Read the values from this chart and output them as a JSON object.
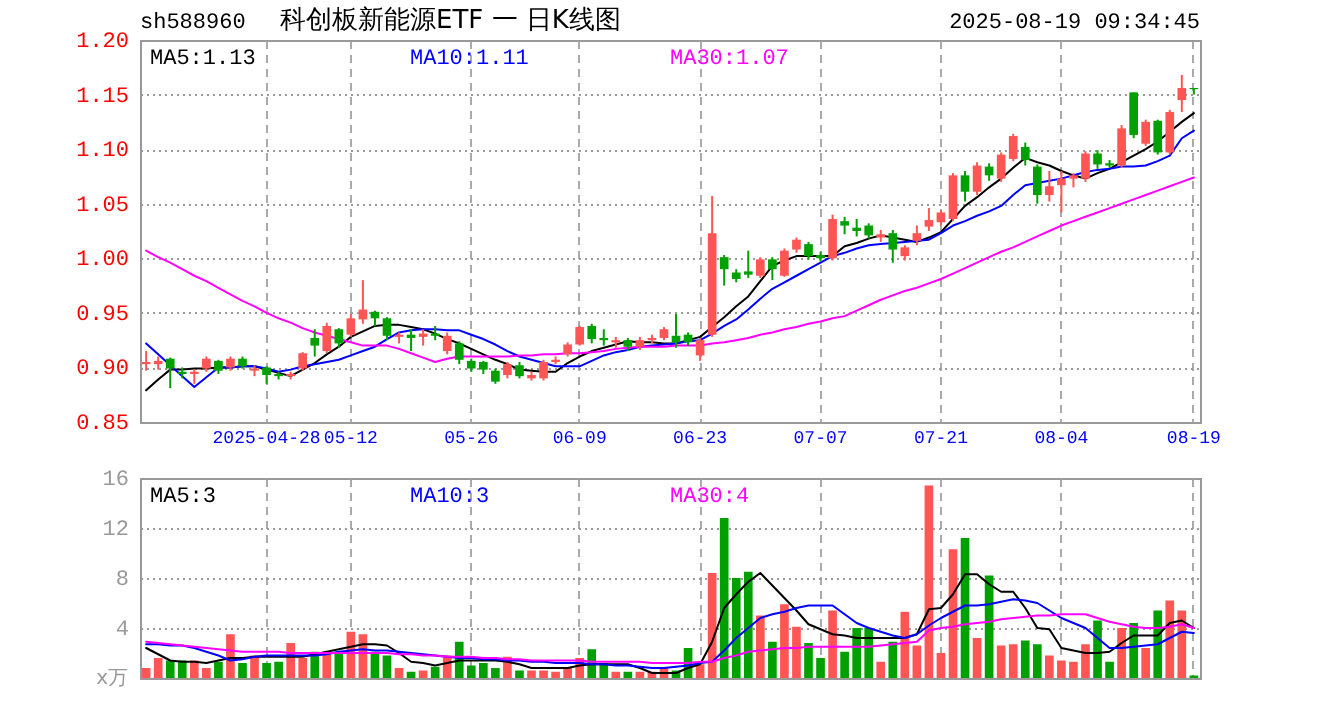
{
  "chart_data": [
    {
      "type": "candlestick",
      "title": "科创板新能源ETF 一 日K线图",
      "subtitle": "sh588960",
      "annotations": [
        "2025-08-19 09:34:45"
      ],
      "categories": [
        null,
        null,
        null,
        null,
        null,
        null,
        null,
        null,
        null,
        null,
        "2025-04-28",
        null,
        null,
        null,
        null,
        null,
        null,
        "05-12",
        null,
        null,
        null,
        null,
        null,
        null,
        null,
        null,
        null,
        "05-26",
        null,
        null,
        null,
        null,
        null,
        null,
        null,
        null,
        "06-09",
        null,
        null,
        null,
        null,
        null,
        null,
        null,
        null,
        null,
        "06-23",
        null,
        null,
        null,
        null,
        null,
        null,
        null,
        null,
        null,
        "07-07",
        null,
        null,
        null,
        null,
        null,
        null,
        null,
        null,
        null,
        "07-21",
        null,
        null,
        null,
        null,
        null,
        null,
        null,
        null,
        null,
        "08-04",
        null,
        null,
        null,
        null,
        null,
        null,
        null,
        null,
        null,
        null,
        "08-19"
      ],
      "ohlc": [
        [
          0.903,
          0.915,
          0.897,
          0.905
        ],
        [
          0.903,
          0.91,
          0.898,
          0.906
        ],
        [
          0.908,
          0.909,
          0.881,
          0.899
        ],
        [
          0.896,
          0.9,
          0.89,
          0.894
        ],
        [
          0.894,
          0.898,
          0.885,
          0.896
        ],
        [
          0.899,
          0.91,
          0.896,
          0.908
        ],
        [
          0.906,
          0.907,
          0.894,
          0.897
        ],
        [
          0.9,
          0.91,
          0.897,
          0.908
        ],
        [
          0.908,
          0.91,
          0.899,
          0.901
        ],
        [
          0.897,
          0.902,
          0.892,
          0.899
        ],
        [
          0.9,
          0.901,
          0.885,
          0.893
        ],
        [
          0.894,
          0.896,
          0.889,
          0.892
        ],
        [
          0.892,
          0.896,
          0.889,
          0.894
        ],
        [
          0.899,
          0.914,
          0.897,
          0.913
        ],
        [
          0.927,
          0.935,
          0.91,
          0.92
        ],
        [
          0.915,
          0.941,
          0.913,
          0.938
        ],
        [
          0.935,
          0.936,
          0.918,
          0.922
        ],
        [
          0.93,
          0.949,
          0.928,
          0.945
        ],
        [
          0.944,
          0.98,
          0.94,
          0.953
        ],
        [
          0.951,
          0.952,
          0.938,
          0.945
        ],
        [
          0.945,
          0.946,
          0.925,
          0.929
        ],
        [
          0.928,
          0.932,
          0.922,
          0.93
        ],
        [
          0.93,
          0.935,
          0.915,
          0.927
        ],
        [
          0.928,
          0.935,
          0.92,
          0.931
        ],
        [
          0.931,
          0.938,
          0.925,
          0.929
        ],
        [
          0.915,
          0.932,
          0.912,
          0.929
        ],
        [
          0.922,
          0.924,
          0.903,
          0.907
        ],
        [
          0.906,
          0.908,
          0.896,
          0.899
        ],
        [
          0.905,
          0.906,
          0.894,
          0.898
        ],
        [
          0.897,
          0.899,
          0.885,
          0.887
        ],
        [
          0.893,
          0.905,
          0.89,
          0.903
        ],
        [
          0.902,
          0.905,
          0.89,
          0.892
        ],
        [
          0.89,
          0.896,
          0.888,
          0.893
        ],
        [
          0.89,
          0.907,
          0.888,
          0.905
        ],
        [
          0.905,
          0.91,
          0.903,
          0.907
        ],
        [
          0.912,
          0.923,
          0.91,
          0.921
        ],
        [
          0.921,
          0.938,
          0.92,
          0.937
        ],
        [
          0.938,
          0.94,
          0.922,
          0.926
        ],
        [
          0.927,
          0.935,
          0.92,
          0.925
        ],
        [
          0.923,
          0.928,
          0.918,
          0.925
        ],
        [
          0.925,
          0.927,
          0.915,
          0.919
        ],
        [
          0.919,
          0.928,
          0.916,
          0.925
        ],
        [
          0.925,
          0.93,
          0.922,
          0.927
        ],
        [
          0.927,
          0.937,
          0.925,
          0.935
        ],
        [
          0.929,
          0.949,
          0.918,
          0.923
        ],
        [
          0.93,
          0.932,
          0.92,
          0.923
        ],
        [
          0.911,
          0.927,
          0.906,
          0.925
        ],
        [
          0.93,
          1.057,
          0.928,
          1.023
        ],
        [
          1.001,
          1.003,
          0.975,
          0.99
        ],
        [
          0.987,
          0.99,
          0.978,
          0.981
        ],
        [
          0.988,
          1.007,
          0.982,
          0.985
        ],
        [
          0.984,
          1.001,
          0.982,
          0.999
        ],
        [
          0.999,
          1.001,
          0.98,
          0.99
        ],
        [
          0.984,
          1.009,
          0.983,
          1.007
        ],
        [
          1.008,
          1.019,
          1.005,
          1.017
        ],
        [
          1.013,
          1.015,
          0.999,
          1.002
        ],
        [
          1.003,
          1.006,
          0.997,
          1.0
        ],
        [
          1.0,
          1.04,
          0.998,
          1.036
        ],
        [
          1.034,
          1.038,
          1.022,
          1.03
        ],
        [
          1.028,
          1.036,
          1.02,
          1.025
        ],
        [
          1.03,
          1.032,
          1.018,
          1.021
        ],
        [
          1.019,
          1.026,
          1.015,
          1.022
        ],
        [
          1.023,
          1.026,
          0.996,
          1.008
        ],
        [
          1.002,
          1.012,
          0.998,
          1.01
        ],
        [
          1.016,
          1.03,
          1.012,
          1.023
        ],
        [
          1.029,
          1.046,
          1.025,
          1.035
        ],
        [
          1.033,
          1.044,
          1.03,
          1.042
        ],
        [
          1.036,
          1.078,
          1.034,
          1.076
        ],
        [
          1.076,
          1.08,
          1.052,
          1.061
        ],
        [
          1.061,
          1.088,
          1.058,
          1.085
        ],
        [
          1.084,
          1.087,
          1.071,
          1.076
        ],
        [
          1.073,
          1.097,
          1.07,
          1.095
        ],
        [
          1.091,
          1.114,
          1.089,
          1.112
        ],
        [
          1.102,
          1.106,
          1.085,
          1.09
        ],
        [
          1.084,
          1.086,
          1.05,
          1.058
        ],
        [
          1.058,
          1.08,
          1.052,
          1.066
        ],
        [
          1.067,
          1.08,
          1.042,
          1.073
        ],
        [
          1.073,
          1.078,
          1.065,
          1.076
        ],
        [
          1.073,
          1.098,
          1.07,
          1.096
        ],
        [
          1.096,
          1.099,
          1.082,
          1.086
        ],
        [
          1.087,
          1.09,
          1.083,
          1.085
        ],
        [
          1.085,
          1.122,
          1.083,
          1.119
        ],
        [
          1.152,
          1.152,
          1.11,
          1.113
        ],
        [
          1.105,
          1.127,
          1.103,
          1.125
        ],
        [
          1.126,
          1.127,
          1.095,
          1.097
        ],
        [
          1.097,
          1.136,
          1.095,
          1.134
        ],
        [
          1.145,
          1.168,
          1.134,
          1.156
        ],
        [
          1.156,
          1.156,
          1.15,
          1.155
        ]
      ],
      "colors": [
        "#ff5555",
        "#ff5555",
        "#00a000",
        "#00a000",
        "#ff5555",
        "#ff5555",
        "#00a000",
        "#ff5555",
        "#00a000",
        "#ff5555",
        "#00a000",
        "#00a000",
        "#ff5555",
        "#ff5555",
        "#00a000",
        "#ff5555",
        "#00a000",
        "#ff5555",
        "#ff5555",
        "#00a000",
        "#00a000",
        "#ff5555",
        "#00a000",
        "#ff5555",
        "#00a000",
        "#ff5555",
        "#00a000",
        "#00a000",
        "#00a000",
        "#00a000",
        "#ff5555",
        "#00a000",
        "#ff5555",
        "#ff5555",
        "#ff5555",
        "#ff5555",
        "#ff5555",
        "#00a000",
        "#00a000",
        "#ff5555",
        "#00a000",
        "#ff5555",
        "#ff5555",
        "#ff5555",
        "#00a000",
        "#00a000",
        "#ff5555",
        "#ff5555",
        "#00a000",
        "#00a000",
        "#00a000",
        "#ff5555",
        "#00a000",
        "#ff5555",
        "#ff5555",
        "#00a000",
        "#00a000",
        "#ff5555",
        "#00a000",
        "#00a000",
        "#00a000",
        "#ff5555",
        "#00a000",
        "#ff5555",
        "#ff5555",
        "#ff5555",
        "#ff5555",
        "#ff5555",
        "#00a000",
        "#ff5555",
        "#00a000",
        "#ff5555",
        "#ff5555",
        "#00a000",
        "#00a000",
        "#ff5555",
        "#ff5555",
        "#ff5555",
        "#ff5555",
        "#00a000",
        "#00a000",
        "#ff5555",
        "#00a000",
        "#ff5555",
        "#00a000",
        "#ff5555",
        "#ff5555",
        "#00a000"
      ],
      "series": [
        {
          "name": "MA5:1.13",
          "type": "line",
          "color": "#000000",
          "values": [
            0.879,
            0.889,
            0.898,
            0.898,
            0.899,
            0.899,
            0.9,
            0.9,
            0.901,
            0.901,
            0.898,
            0.895,
            0.892,
            0.898,
            0.904,
            0.912,
            0.919,
            0.928,
            0.933,
            0.938,
            0.939,
            0.939,
            0.937,
            0.935,
            0.931,
            0.926,
            0.922,
            0.917,
            0.912,
            0.907,
            0.903,
            0.898,
            0.897,
            0.896,
            0.896,
            0.904,
            0.91,
            0.915,
            0.918,
            0.921,
            0.924,
            0.923,
            0.923,
            0.922,
            0.922,
            0.925,
            0.928,
            0.937,
            0.946,
            0.956,
            0.965,
            0.979,
            0.993,
            0.998,
            1.002,
            1.002,
            1.002,
            1.002,
            1.011,
            1.014,
            1.018,
            1.021,
            1.019,
            1.017,
            1.015,
            1.019,
            1.024,
            1.036,
            1.048,
            1.056,
            1.065,
            1.073,
            1.083,
            1.092,
            1.088,
            1.085,
            1.08,
            1.076,
            1.073,
            1.078,
            1.082,
            1.088,
            1.094,
            1.1,
            1.107,
            1.116,
            1.125,
            1.133
          ]
        },
        {
          "name": "MA10:1.11",
          "type": "line",
          "color": "#0000ff",
          "values": [
            0.922,
            0.912,
            0.902,
            0.892,
            0.882,
            0.891,
            0.9,
            0.9,
            0.901,
            0.901,
            0.899,
            0.896,
            0.898,
            0.901,
            0.903,
            0.905,
            0.907,
            0.911,
            0.915,
            0.919,
            0.926,
            0.932,
            0.934,
            0.935,
            0.935,
            0.934,
            0.934,
            0.93,
            0.926,
            0.921,
            0.915,
            0.91,
            0.907,
            0.904,
            0.901,
            0.901,
            0.901,
            0.906,
            0.911,
            0.914,
            0.916,
            0.919,
            0.92,
            0.921,
            0.922,
            0.924,
            0.925,
            0.931,
            0.938,
            0.944,
            0.953,
            0.963,
            0.972,
            0.978,
            0.984,
            0.99,
            0.996,
            1.002,
            1.005,
            1.009,
            1.012,
            1.013,
            1.014,
            1.015,
            1.016,
            1.017,
            1.023,
            1.03,
            1.034,
            1.039,
            1.043,
            1.048,
            1.058,
            1.067,
            1.069,
            1.071,
            1.073,
            1.076,
            1.079,
            1.081,
            1.082,
            1.084,
            1.084,
            1.085,
            1.089,
            1.094,
            1.11,
            1.117
          ]
        },
        {
          "name": "MA30:1.07",
          "type": "line",
          "color": "#ff00ff",
          "values": [
            1.007,
            1.001,
            0.996,
            0.99,
            0.984,
            0.979,
            0.973,
            0.967,
            0.961,
            0.956,
            0.95,
            0.945,
            0.941,
            0.936,
            0.932,
            0.929,
            0.926,
            0.923,
            0.92,
            0.92,
            0.92,
            0.917,
            0.913,
            0.909,
            0.905,
            0.908,
            0.91,
            0.91,
            0.91,
            0.91,
            0.91,
            0.911,
            0.911,
            0.912,
            0.912,
            0.913,
            0.913,
            0.914,
            0.915,
            0.917,
            0.918,
            0.919,
            0.919,
            0.919,
            0.92,
            0.92,
            0.92,
            0.922,
            0.923,
            0.925,
            0.927,
            0.93,
            0.932,
            0.935,
            0.937,
            0.94,
            0.942,
            0.945,
            0.947,
            0.952,
            0.957,
            0.962,
            0.966,
            0.97,
            0.973,
            0.977,
            0.981,
            0.986,
            0.991,
            0.996,
            1.001,
            1.006,
            1.01,
            1.015,
            1.02,
            1.025,
            1.03,
            1.034,
            1.038,
            1.042,
            1.046,
            1.05,
            1.054,
            1.058,
            1.062,
            1.066,
            1.07,
            1.074
          ]
        }
      ],
      "ylim": [
        0.85,
        1.2
      ],
      "yticks": [
        0.85,
        {
          "value": 0.9,
          "label": "0.90"
        },
        0.95,
        {
          "value": 1.0,
          "label": "1.00"
        },
        1.05,
        {
          "value": 1.1,
          "label": "1.10"
        },
        1.15,
        {
          "value": 1.2,
          "label": "1.20"
        }
      ],
      "grid": true
    },
    {
      "type": "bar",
      "ylabel": "x万",
      "tick_labels": "y",
      "categories": [
        null,
        null,
        null,
        null,
        null,
        null,
        null,
        null,
        null,
        null,
        null,
        null,
        null,
        null,
        null,
        null,
        null,
        null,
        null,
        null,
        null,
        null,
        null,
        null,
        null,
        null,
        null,
        null,
        null,
        null,
        null,
        null,
        null,
        null,
        null,
        null,
        null,
        null,
        null,
        null,
        null,
        null,
        null,
        null,
        null,
        null,
        null,
        null,
        null,
        null,
        null,
        null,
        null,
        null,
        null,
        null,
        null,
        null,
        null,
        null,
        null,
        null,
        null,
        null,
        null,
        null,
        null,
        null,
        null,
        null,
        null,
        null,
        null,
        null,
        null,
        null,
        null,
        null,
        null,
        null,
        null,
        null,
        null,
        null,
        null,
        null,
        null,
        null
      ],
      "series": [
        {
          "type": "bar",
          "values": [
            0.8,
            1.6,
            1.4,
            1.4,
            1.4,
            0.8,
            1.3,
            3.5,
            1.2,
            1.8,
            1.2,
            1.3,
            2.8,
            1.6,
            2.1,
            2.1,
            2.1,
            3.7,
            3.5,
            2.1,
            1.8,
            0.8,
            0.5,
            0.6,
            0.9,
            1.8,
            2.9,
            1.0,
            1.2,
            0.8,
            1.7,
            0.6,
            0.6,
            0.6,
            0.5,
            0.8,
            1.6,
            2.3,
            1.2,
            0.5,
            0.5,
            0.5,
            0.5,
            0.8,
            0.6,
            2.4,
            1.1,
            8.4,
            12.8,
            8.0,
            8.5,
            5.0,
            2.9,
            5.9,
            4.1,
            2.8,
            1.6,
            5.4,
            2.1,
            4.0,
            4.0,
            1.3,
            2.9,
            5.3,
            2.6,
            15.4,
            2.0,
            10.3,
            11.2,
            3.2,
            8.2,
            2.6,
            2.7,
            3.0,
            2.7,
            1.8,
            1.4,
            1.3,
            2.7,
            4.6,
            1.3,
            4.0,
            4.4,
            2.4,
            5.4,
            6.2,
            5.4,
            0.2
          ],
          "colors": [
            "#ff5555",
            "#ff5555",
            "#00a000",
            "#00a000",
            "#ff5555",
            "#ff5555",
            "#00a000",
            "#ff5555",
            "#00a000",
            "#ff5555",
            "#00a000",
            "#00a000",
            "#ff5555",
            "#ff5555",
            "#00a000",
            "#ff5555",
            "#00a000",
            "#ff5555",
            "#ff5555",
            "#00a000",
            "#00a000",
            "#ff5555",
            "#00a000",
            "#ff5555",
            "#00a000",
            "#ff5555",
            "#00a000",
            "#00a000",
            "#00a000",
            "#00a000",
            "#ff5555",
            "#00a000",
            "#ff5555",
            "#ff5555",
            "#ff5555",
            "#ff5555",
            "#ff5555",
            "#00a000",
            "#00a000",
            "#ff5555",
            "#00a000",
            "#ff5555",
            "#ff5555",
            "#ff5555",
            "#00a000",
            "#00a000",
            "#ff5555",
            "#ff5555",
            "#00a000",
            "#00a000",
            "#00a000",
            "#ff5555",
            "#00a000",
            "#ff5555",
            "#ff5555",
            "#00a000",
            "#00a000",
            "#ff5555",
            "#00a000",
            "#00a000",
            "#00a000",
            "#ff5555",
            "#00a000",
            "#ff5555",
            "#ff5555",
            "#ff5555",
            "#ff5555",
            "#ff5555",
            "#00a000",
            "#ff5555",
            "#00a000",
            "#ff5555",
            "#ff5555",
            "#00a000",
            "#00a000",
            "#ff5555",
            "#ff5555",
            "#ff5555",
            "#ff5555",
            "#00a000",
            "#00a000",
            "#ff5555",
            "#00a000",
            "#ff5555",
            "#00a000",
            "#ff5555",
            "#ff5555",
            "#00a000"
          ]
        },
        {
          "name": "MA5:3",
          "type": "line",
          "color": "#000000",
          "values": [
            2.4,
            1.9,
            1.4,
            1.3,
            1.3,
            1.2,
            1.4,
            1.6,
            1.6,
            1.7,
            1.7,
            1.7,
            1.7,
            1.7,
            1.9,
            2.1,
            2.3,
            2.5,
            2.7,
            2.7,
            2.6,
            2.0,
            1.3,
            1.2,
            1.0,
            1.2,
            1.4,
            1.4,
            1.4,
            1.4,
            1.3,
            1.1,
            0.8,
            0.8,
            0.8,
            0.8,
            1.0,
            1.1,
            1.1,
            1.1,
            1.1,
            0.8,
            0.4,
            0.4,
            0.4,
            0.8,
            1.1,
            2.9,
            5.6,
            6.7,
            7.7,
            8.4,
            7.4,
            6.4,
            5.4,
            4.3,
            3.9,
            3.5,
            3.4,
            3.2,
            3.2,
            3.2,
            3.2,
            3.2,
            3.5,
            5.5,
            5.6,
            6.7,
            8.3,
            8.3,
            7.5,
            6.9,
            6.9,
            5.6,
            4.0,
            3.9,
            2.4,
            2.2,
            2.0,
            2.0,
            2.1,
            2.8,
            3.4,
            3.4,
            3.4,
            4.4,
            4.6,
            4.0
          ]
        },
        {
          "name": "MA10:3",
          "type": "line",
          "color": "#0000ff",
          "values": [
            2.7,
            2.7,
            2.6,
            2.6,
            2.4,
            2.1,
            1.8,
            1.4,
            1.5,
            1.7,
            1.8,
            1.8,
            1.8,
            1.8,
            1.8,
            1.9,
            2.1,
            2.2,
            2.3,
            2.2,
            2.2,
            2.1,
            2.0,
            1.9,
            1.8,
            1.7,
            1.6,
            1.6,
            1.5,
            1.5,
            1.4,
            1.4,
            1.3,
            1.3,
            1.2,
            1.2,
            1.2,
            1.1,
            1.1,
            1.0,
            1.0,
            0.9,
            0.8,
            0.8,
            0.9,
            1.0,
            1.2,
            1.3,
            2.2,
            3.2,
            4.0,
            4.8,
            5.1,
            5.3,
            5.6,
            5.8,
            5.8,
            5.8,
            5.1,
            4.4,
            4.0,
            3.7,
            3.4,
            3.2,
            3.5,
            4.2,
            4.8,
            5.3,
            5.8,
            5.8,
            5.9,
            6.1,
            6.3,
            6.2,
            6.0,
            5.4,
            4.8,
            4.4,
            4.0,
            3.2,
            2.4,
            2.4,
            2.5,
            2.6,
            2.7,
            3.2,
            3.7,
            3.6
          ]
        },
        {
          "name": "MA30:4",
          "type": "line",
          "color": "#ff00ff",
          "values": [
            2.9,
            2.8,
            2.7,
            2.6,
            2.5,
            2.4,
            2.3,
            2.2,
            2.1,
            2.1,
            2.1,
            2.1,
            2.0,
            2.0,
            2.0,
            2.0,
            2.0,
            2.0,
            2.0,
            2.0,
            2.0,
            1.9,
            1.9,
            1.8,
            1.8,
            1.7,
            1.7,
            1.7,
            1.6,
            1.6,
            1.5,
            1.5,
            1.4,
            1.4,
            1.4,
            1.4,
            1.4,
            1.3,
            1.3,
            1.3,
            1.3,
            1.3,
            1.2,
            1.2,
            1.2,
            1.2,
            1.3,
            1.3,
            1.6,
            1.8,
            2.1,
            2.2,
            2.3,
            2.4,
            2.4,
            2.5,
            2.5,
            2.5,
            2.5,
            2.5,
            2.5,
            2.6,
            2.7,
            2.8,
            2.9,
            3.8,
            4.0,
            4.1,
            4.3,
            4.4,
            4.5,
            4.7,
            4.8,
            4.9,
            5.0,
            5.0,
            5.1,
            5.1,
            5.1,
            4.8,
            4.5,
            4.3,
            4.1,
            4.0,
            4.0,
            4.1,
            4.3,
            4.0
          ]
        }
      ],
      "ylim": [
        0,
        16
      ],
      "yticks": [
        4,
        8,
        12,
        16
      ],
      "grid": true
    }
  ]
}
